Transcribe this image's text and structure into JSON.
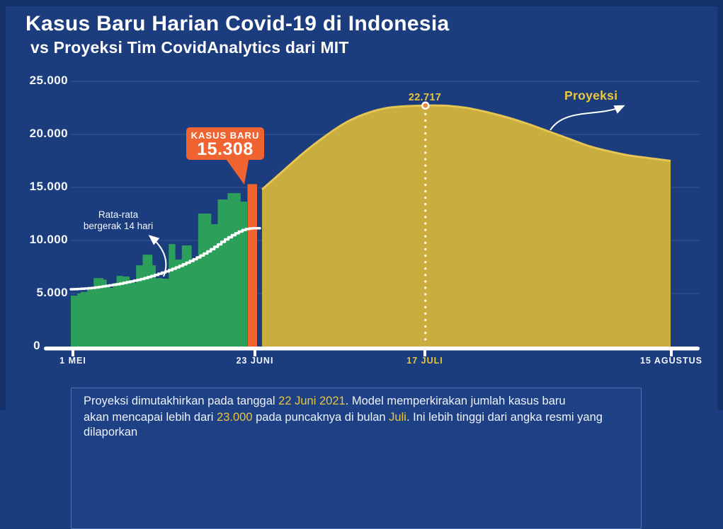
{
  "title": "Kasus Baru Harian Covid-19 di Indonesia",
  "subtitle": "vs Proyeksi Tim CovidAnalytics dari MIT",
  "colors": {
    "background": "#1c3d7d",
    "frame": "#15316a",
    "bars_green": "#2ca05a",
    "projection_yellow": "#c9ad3e",
    "projection_edge": "#e6c552",
    "highlight_orange": "#ef6430",
    "accent_yellow": "#e9c53e",
    "text_white": "#ffffff",
    "gridline": "rgba(255,255,255,0.09)"
  },
  "chart_data": {
    "type": "bar+area",
    "title": "Kasus Baru Harian Covid-19 di Indonesia vs Proyeksi Tim CovidAnalytics dari MIT",
    "y_axis": {
      "min": 0,
      "max": 25000,
      "ticks": [
        {
          "label": "25.000",
          "value": 25000
        },
        {
          "label": "20.000",
          "value": 20000
        },
        {
          "label": "15.000",
          "value": 15000
        },
        {
          "label": "10.000",
          "value": 10000
        },
        {
          "label": "5.000",
          "value": 5000
        },
        {
          "label": "0",
          "value": 0
        }
      ],
      "grid": true
    },
    "x_axis": {
      "ticks": [
        {
          "label": "1 MEI",
          "highlight": false
        },
        {
          "label": "23 JUNI",
          "highlight": false
        },
        {
          "label": "17 JULI",
          "highlight": true
        },
        {
          "label": "15 AGUSTUS",
          "highlight": false
        }
      ]
    },
    "bars": {
      "name": "Kasus baru harian (1 Mei - 22 Juni)",
      "values": [
        4800,
        4800,
        5000,
        5150,
        5150,
        5500,
        5400,
        6450,
        6450,
        6450,
        6300,
        5800,
        5530,
        6000,
        6660,
        6660,
        6600,
        6600,
        6100,
        6000,
        7660,
        7660,
        8660,
        8660,
        8660,
        7660,
        6450,
        6450,
        6400,
        6400,
        9660,
        9660,
        8200,
        8200,
        9530,
        9530,
        9530,
        8200,
        8200,
        12530,
        12530,
        12530,
        12530,
        11530,
        11530,
        13860,
        13860,
        13860,
        14460,
        14460,
        14460,
        14460,
        13660,
        13660
      ]
    },
    "highlight_bar": {
      "label": "KASUS BARU",
      "value": 15308,
      "value_label": "15.308",
      "date": "23 JUNI"
    },
    "moving_average": {
      "label_line1": "Rata-rata",
      "label_line2": "bergerak 14 hari",
      "values": [
        5400,
        5410,
        5430,
        5450,
        5470,
        5500,
        5530,
        5570,
        5620,
        5670,
        5720,
        5770,
        5820,
        5870,
        5930,
        6000,
        6070,
        6140,
        6210,
        6280,
        6360,
        6450,
        6550,
        6650,
        6750,
        6860,
        6970,
        7080,
        7200,
        7330,
        7460,
        7600,
        7750,
        7900,
        8060,
        8230,
        8400,
        8580,
        8770,
        8970,
        9180,
        9400,
        9630,
        9870,
        10100,
        10300,
        10500,
        10680,
        10840,
        10980,
        11080,
        11130,
        11150,
        11150
      ]
    },
    "projection": {
      "label": "Proyeksi",
      "span": "23 Juni - 15 Agustus",
      "peak_label": "22.717",
      "peak_value": 22717,
      "peak_date": "17 JULI",
      "values": [
        14800,
        16500,
        18200,
        19700,
        21000,
        21900,
        22450,
        22650,
        22717,
        22700,
        22500,
        22100,
        21600,
        21000,
        20300,
        19600,
        18900,
        18400,
        18000,
        17750,
        17500
      ]
    }
  },
  "footer": {
    "line1": [
      {
        "t": "Proyeksi dimutakhirkan pada tanggal ",
        "c": "w"
      },
      {
        "t": "22 Juni 2021",
        "c": "y"
      },
      {
        "t": ". Model memperkirakan jumlah kasus baru",
        "c": "w"
      }
    ],
    "line2": [
      {
        "t": "akan mencapai lebih dari ",
        "c": "w"
      },
      {
        "t": "23.000",
        "c": "y"
      },
      {
        "t": " pada puncaknya di bulan ",
        "c": "w"
      },
      {
        "t": "Juli",
        "c": "y"
      },
      {
        "t": ". Ini lebih tinggi dari angka resmi yang dilaporkan",
        "c": "w"
      }
    ]
  }
}
